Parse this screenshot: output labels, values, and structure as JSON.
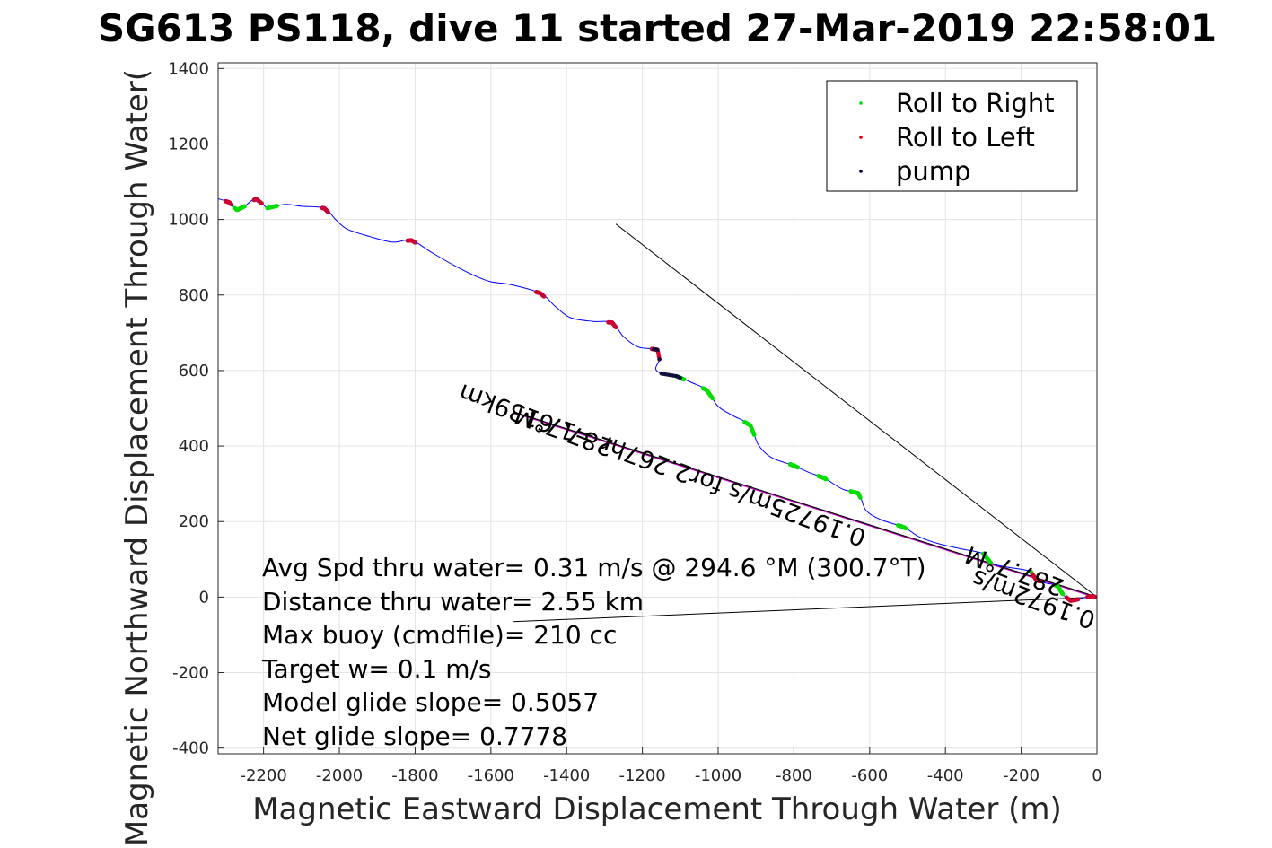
{
  "chart_data": {
    "type": "line",
    "title": "SG613 PS118, dive 11 started 27-Mar-2019 22:58:01",
    "xlabel": "Magnetic Eastward Displacement Through Water (m)",
    "ylabel": "Magnetic Northward Displacement Through Water(",
    "xlim": [
      -2320,
      0
    ],
    "ylim": [
      -415,
      1415
    ],
    "xticks": [
      "-2200",
      "-2000",
      "-1800",
      "-1600",
      "-1400",
      "-1200",
      "-1000",
      "-800",
      "-600",
      "-400",
      "-200",
      "0"
    ],
    "yticks": [
      "1400",
      "1200",
      "1000",
      "800",
      "600",
      "400",
      "200",
      "0",
      "-200",
      "-400"
    ],
    "grid": true,
    "legend_position": "top-right",
    "legend": [
      {
        "label": "Roll to Right",
        "color": "#00dd00"
      },
      {
        "label": "Roll to Left",
        "color": "#dd0000"
      },
      {
        "label": "pump",
        "color": "#000040"
      }
    ],
    "colors": {
      "track": "#0000ff",
      "roll_right": "#00dd00",
      "roll_left": "#cc0033",
      "pump": "#101040",
      "current": "#d000d0",
      "lines": "#000000"
    },
    "track": [
      {
        "x": -2320,
        "y": 1055
      },
      {
        "x": -2290,
        "y": 1045
      },
      {
        "x": -2270,
        "y": 1025
      },
      {
        "x": -2250,
        "y": 1035
      },
      {
        "x": -2220,
        "y": 1055
      },
      {
        "x": -2190,
        "y": 1030
      },
      {
        "x": -2170,
        "y": 1035
      },
      {
        "x": -2140,
        "y": 1040
      },
      {
        "x": -2100,
        "y": 1035
      },
      {
        "x": -2040,
        "y": 1030
      },
      {
        "x": -2010,
        "y": 1000
      },
      {
        "x": -1980,
        "y": 975
      },
      {
        "x": -1920,
        "y": 955
      },
      {
        "x": -1860,
        "y": 940
      },
      {
        "x": -1810,
        "y": 945
      },
      {
        "x": -1760,
        "y": 915
      },
      {
        "x": -1700,
        "y": 880
      },
      {
        "x": -1640,
        "y": 850
      },
      {
        "x": -1600,
        "y": 835
      },
      {
        "x": -1550,
        "y": 828
      },
      {
        "x": -1470,
        "y": 805
      },
      {
        "x": -1430,
        "y": 770
      },
      {
        "x": -1390,
        "y": 740
      },
      {
        "x": -1330,
        "y": 730
      },
      {
        "x": -1280,
        "y": 727
      },
      {
        "x": -1250,
        "y": 690
      },
      {
        "x": -1210,
        "y": 662
      },
      {
        "x": -1160,
        "y": 655
      },
      {
        "x": -1155,
        "y": 630
      },
      {
        "x": -1165,
        "y": 605
      },
      {
        "x": -1150,
        "y": 592
      },
      {
        "x": -1110,
        "y": 585
      },
      {
        "x": -1070,
        "y": 568
      },
      {
        "x": -1030,
        "y": 548
      },
      {
        "x": -1000,
        "y": 505
      },
      {
        "x": -960,
        "y": 480
      },
      {
        "x": -915,
        "y": 455
      },
      {
        "x": -895,
        "y": 405
      },
      {
        "x": -860,
        "y": 370
      },
      {
        "x": -800,
        "y": 348
      },
      {
        "x": -760,
        "y": 330
      },
      {
        "x": -720,
        "y": 315
      },
      {
        "x": -670,
        "y": 285
      },
      {
        "x": -630,
        "y": 275
      },
      {
        "x": -610,
        "y": 230
      },
      {
        "x": -570,
        "y": 205
      },
      {
        "x": -510,
        "y": 185
      },
      {
        "x": -470,
        "y": 160
      },
      {
        "x": -420,
        "y": 142
      },
      {
        "x": -360,
        "y": 128
      },
      {
        "x": -300,
        "y": 115
      },
      {
        "x": -280,
        "y": 90
      },
      {
        "x": -240,
        "y": 80
      },
      {
        "x": -175,
        "y": 68
      },
      {
        "x": -160,
        "y": 45
      },
      {
        "x": -140,
        "y": 38
      },
      {
        "x": -105,
        "y": 30
      },
      {
        "x": -90,
        "y": 8
      },
      {
        "x": -70,
        "y": -10
      },
      {
        "x": -45,
        "y": -5
      },
      {
        "x": -20,
        "y": 2
      },
      {
        "x": 0,
        "y": 0
      }
    ],
    "roll_right_segments": [
      [
        -2275,
        -2250
      ],
      [
        -2190,
        -2165
      ],
      [
        -1110,
        -1090
      ],
      [
        -1040,
        -1015
      ],
      [
        -930,
        -905
      ],
      [
        -810,
        -790
      ],
      [
        -735,
        -715
      ],
      [
        -650,
        -625
      ],
      [
        -525,
        -505
      ],
      [
        -300,
        -280
      ],
      [
        -175,
        -155
      ],
      [
        -110,
        -90
      ]
    ],
    "roll_left_segments": [
      [
        -2300,
        -2285
      ],
      [
        -2225,
        -2205
      ],
      [
        -2045,
        -2030
      ],
      [
        -1820,
        -1800
      ],
      [
        -1480,
        -1460
      ],
      [
        -1290,
        -1270
      ],
      [
        -1175,
        -1155
      ],
      [
        -170,
        -150
      ],
      [
        -80,
        -50
      ],
      [
        -25,
        -5
      ]
    ],
    "pump_segment": [
      -1170,
      -1100
    ],
    "reference_lines": [
      {
        "from": {
          "x": -1270,
          "y": 988
        },
        "to": {
          "x": 0,
          "y": 0
        }
      },
      {
        "from": {
          "x": -1540,
          "y": -65
        },
        "to": {
          "x": 0,
          "y": 0
        }
      }
    ],
    "current_line": {
      "from": {
        "x": -1540,
        "y": 490
      },
      "to": {
        "x": 0,
        "y": 0
      }
    },
    "rotated_labels": [
      {
        "text": "287.7°M",
        "x": -1400,
        "y": 460,
        "angle": 200
      },
      {
        "text": "0.19725m/s for2.267hr =1.6139km",
        "x": -1140,
        "y": 370,
        "angle": 200
      },
      {
        "text": "287.7°M",
        "x": -210,
        "y": 90,
        "angle": 200
      },
      {
        "text": "0.1972m/s",
        "x": -160,
        "y": 15,
        "angle": 200
      }
    ]
  },
  "annotations": [
    "Avg Spd thru water=  0.31 m/s @ 294.6 °M (300.7°T)",
    "Distance thru water=  2.55 km",
    "Max buoy (cmdfile)= 210 cc",
    "Target w= 0.1 m/s",
    "Model glide slope= 0.5057",
    "Net glide slope= 0.7778"
  ]
}
